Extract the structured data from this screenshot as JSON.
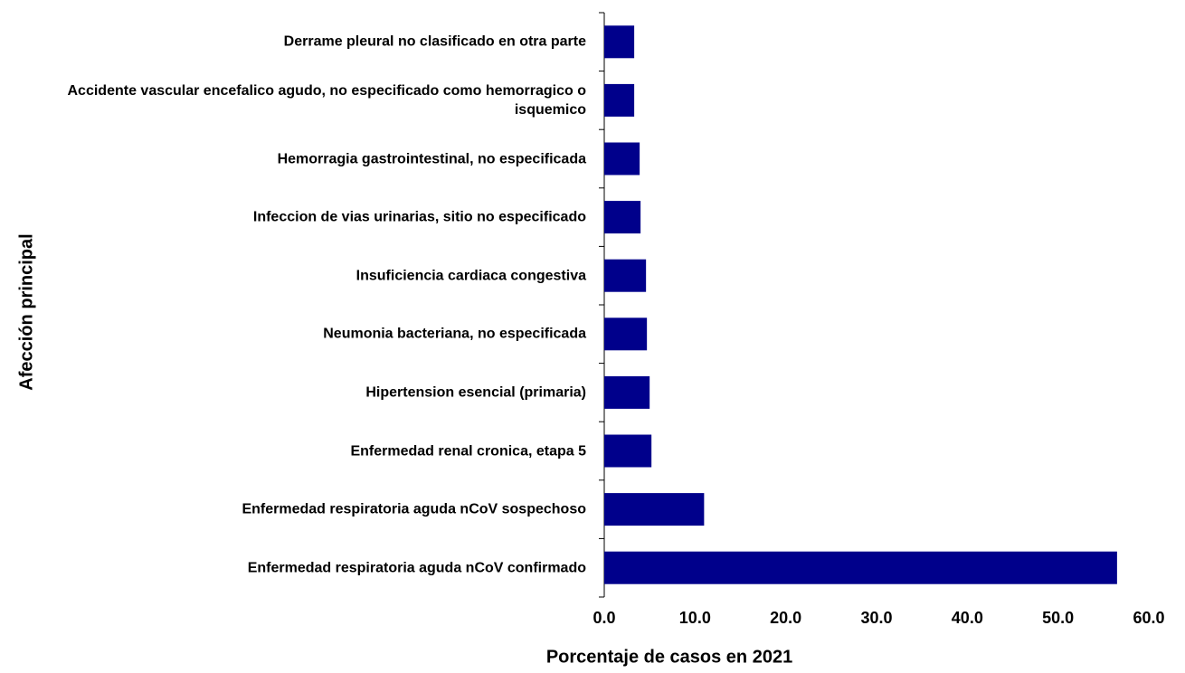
{
  "chart_data": {
    "type": "bar",
    "orientation": "horizontal",
    "xlabel": "Porcentaje de casos en 2021",
    "ylabel": "Afección principal",
    "categories": [
      "Derrame pleural no clasificado en otra parte",
      "Accidente vascular encefalico agudo, no especificado como hemorragico o isquemico",
      "Hemorragia gastrointestinal, no especificada",
      "Infeccion de vias urinarias, sitio no especificado",
      "Insuficiencia cardiaca congestiva",
      "Neumonia bacteriana, no especificada",
      "Hipertension esencial (primaria)",
      "Enfermedad renal cronica, etapa 5",
      "Enfermedad respiratoria aguda nCoV sospechoso",
      "Enfermedad respiratoria aguda nCoV confirmado"
    ],
    "values": [
      3.3,
      3.3,
      3.9,
      4.0,
      4.6,
      4.7,
      5.0,
      5.2,
      11.0,
      56.5
    ],
    "color": "#00008b",
    "xlim": [
      0,
      60
    ],
    "xticks": [
      {
        "value": 0,
        "label": "0.0"
      },
      {
        "value": 10,
        "label": "10.0"
      },
      {
        "value": 20,
        "label": "20.0"
      },
      {
        "value": 30,
        "label": "30.0"
      },
      {
        "value": 40,
        "label": "40.0"
      },
      {
        "value": 50,
        "label": "50.0"
      },
      {
        "value": 60,
        "label": "60.0"
      }
    ],
    "grid": false
  }
}
